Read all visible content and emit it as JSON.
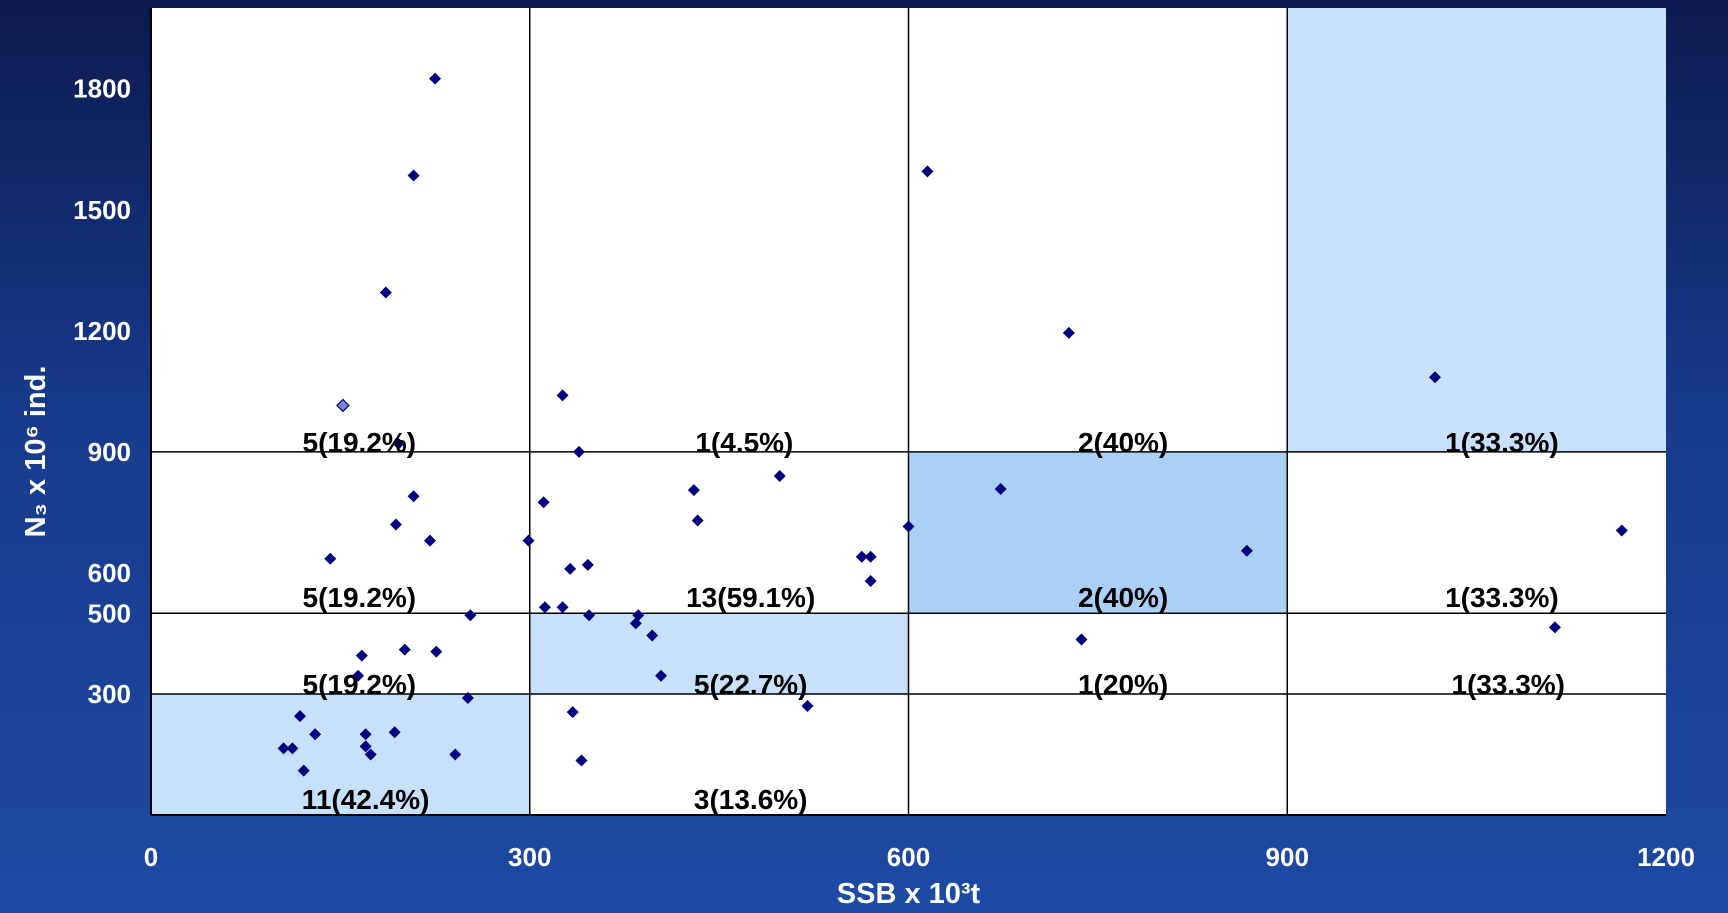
{
  "chart_data": {
    "type": "scatter",
    "xlabel": "SSB x 10³t",
    "ylabel": "N₃ x 10⁶ ind.",
    "xlim": [
      0,
      1200
    ],
    "ylim": [
      0,
      2000
    ],
    "x_ticks": [
      "0",
      "300",
      "600",
      "900",
      "1200"
    ],
    "x_tick_values": [
      0,
      300,
      600,
      900,
      1200
    ],
    "y_ticks": [
      "300",
      "500",
      "600",
      "900",
      "1200",
      "1500",
      "1800"
    ],
    "y_tick_values": [
      300,
      500,
      600,
      900,
      1200,
      1500,
      1800
    ],
    "grid": {
      "vertical": [
        300,
        600,
        900
      ],
      "horizontal": [
        300,
        500,
        900
      ]
    },
    "colors": {
      "plot_bg": "#ffffff",
      "cell_light": "#c7e0fb",
      "cell_mid": "#abd0f8",
      "marker": "#000080",
      "marker_highlight": "#8080d0"
    },
    "shaded_cells": [
      {
        "x": [
          0,
          300
        ],
        "y": [
          0,
          300
        ],
        "shade": "light"
      },
      {
        "x": [
          300,
          600
        ],
        "y": [
          300,
          500
        ],
        "shade": "light"
      },
      {
        "x": [
          600,
          900
        ],
        "y": [
          500,
          900
        ],
        "shade": "mid"
      },
      {
        "x": [
          900,
          1200
        ],
        "y": [
          900,
          2000
        ],
        "shade": "light"
      }
    ],
    "cell_labels": [
      {
        "text": "5(19.2%)",
        "x": 165,
        "y": 925
      },
      {
        "text": "1(4.5%)",
        "x": 470,
        "y": 925
      },
      {
        "text": "2(40%)",
        "x": 770,
        "y": 925
      },
      {
        "text": "1(33.3%)",
        "x": 1070,
        "y": 925
      },
      {
        "text": "5(19.2%)",
        "x": 165,
        "y": 540
      },
      {
        "text": "13(59.1%)",
        "x": 475,
        "y": 540
      },
      {
        "text": "2(40%)",
        "x": 770,
        "y": 540
      },
      {
        "text": "1(33.3%)",
        "x": 1070,
        "y": 540
      },
      {
        "text": "5(19.2%)",
        "x": 165,
        "y": 325
      },
      {
        "text": "5(22.7%)",
        "x": 475,
        "y": 325
      },
      {
        "text": "1(20%)",
        "x": 770,
        "y": 325
      },
      {
        "text": "1(33.3%)",
        "x": 1075,
        "y": 325
      },
      {
        "text": "11(42.4%)",
        "x": 170,
        "y": 40
      },
      {
        "text": "3(13.6%)",
        "x": 475,
        "y": 40
      }
    ],
    "points": [
      {
        "x": 225,
        "y": 1825
      },
      {
        "x": 208,
        "y": 1585
      },
      {
        "x": 186,
        "y": 1295
      },
      {
        "x": 152,
        "y": 1015,
        "highlight": true
      },
      {
        "x": 196,
        "y": 920
      },
      {
        "x": 208,
        "y": 790
      },
      {
        "x": 194,
        "y": 720
      },
      {
        "x": 221,
        "y": 680
      },
      {
        "x": 142,
        "y": 635
      },
      {
        "x": 253,
        "y": 495
      },
      {
        "x": 201,
        "y": 410
      },
      {
        "x": 226,
        "y": 405
      },
      {
        "x": 167,
        "y": 395
      },
      {
        "x": 164,
        "y": 345
      },
      {
        "x": 251,
        "y": 290
      },
      {
        "x": 118,
        "y": 245
      },
      {
        "x": 130,
        "y": 200
      },
      {
        "x": 170,
        "y": 200
      },
      {
        "x": 193,
        "y": 205
      },
      {
        "x": 105,
        "y": 165
      },
      {
        "x": 112,
        "y": 165
      },
      {
        "x": 170,
        "y": 170
      },
      {
        "x": 174,
        "y": 150
      },
      {
        "x": 241,
        "y": 150
      },
      {
        "x": 121,
        "y": 110
      },
      {
        "x": 326,
        "y": 1040
      },
      {
        "x": 339,
        "y": 900
      },
      {
        "x": 311,
        "y": 775
      },
      {
        "x": 299,
        "y": 680
      },
      {
        "x": 346,
        "y": 620
      },
      {
        "x": 332,
        "y": 610
      },
      {
        "x": 312,
        "y": 515
      },
      {
        "x": 326,
        "y": 515
      },
      {
        "x": 347,
        "y": 495
      },
      {
        "x": 386,
        "y": 495
      },
      {
        "x": 384,
        "y": 475
      },
      {
        "x": 397,
        "y": 445
      },
      {
        "x": 404,
        "y": 345
      },
      {
        "x": 334,
        "y": 255
      },
      {
        "x": 341,
        "y": 135
      },
      {
        "x": 430,
        "y": 805
      },
      {
        "x": 433,
        "y": 730
      },
      {
        "x": 498,
        "y": 840
      },
      {
        "x": 563,
        "y": 640
      },
      {
        "x": 570,
        "y": 640
      },
      {
        "x": 570,
        "y": 580
      },
      {
        "x": 520,
        "y": 270
      },
      {
        "x": 600,
        "y": 715
      },
      {
        "x": 615,
        "y": 1595
      },
      {
        "x": 673,
        "y": 808
      },
      {
        "x": 727,
        "y": 1195
      },
      {
        "x": 737,
        "y": 435
      },
      {
        "x": 868,
        "y": 655
      },
      {
        "x": 1017,
        "y": 1085
      },
      {
        "x": 1112,
        "y": 465
      },
      {
        "x": 1165,
        "y": 705
      }
    ]
  }
}
